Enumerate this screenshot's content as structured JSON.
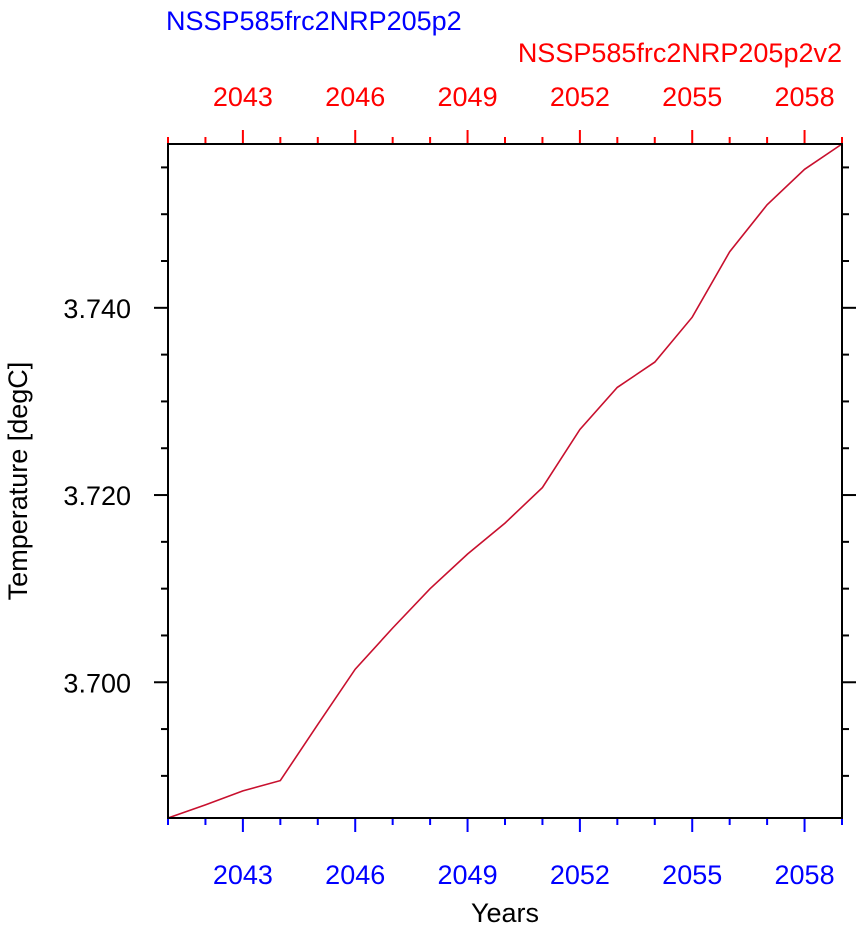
{
  "chart_data": {
    "type": "line",
    "title_left": "NSSP585frc2NRP205p2",
    "title_right": "NSSP585frc2NRP205p2v2",
    "xlabel": "Years",
    "ylabel": "Temperature [degC]",
    "xlim": [
      2041,
      2059
    ],
    "ylim": [
      3.6855,
      3.7575
    ],
    "x_ticks": [
      2043,
      2046,
      2049,
      2052,
      2055,
      2058
    ],
    "x_tick_labels": [
      "2043",
      "2046",
      "2049",
      "2052",
      "2055",
      "2058"
    ],
    "y_ticks": [
      3.7,
      3.72,
      3.74
    ],
    "y_tick_labels": [
      "3.700",
      "3.720",
      "3.740"
    ],
    "colors": {
      "bottom_axis": "#0000ff",
      "top_axis": "#ff0000",
      "left_title": "#0000ff",
      "right_title": "#ff0000",
      "series": "#c8102e",
      "frame": "#000000"
    },
    "series": [
      {
        "x": [
          2041,
          2042,
          2043,
          2044,
          2045,
          2046,
          2047,
          2048,
          2049,
          2050,
          2051,
          2052,
          2053,
          2054,
          2055,
          2056,
          2057,
          2058,
          2059
        ],
        "values": [
          3.6855,
          3.6869,
          3.6884,
          3.6895,
          3.6955,
          3.7014,
          3.7058,
          3.71,
          3.7137,
          3.717,
          3.7208,
          3.727,
          3.7315,
          3.7342,
          3.739,
          3.746,
          3.751,
          3.7548,
          3.7575
        ]
      }
    ]
  }
}
